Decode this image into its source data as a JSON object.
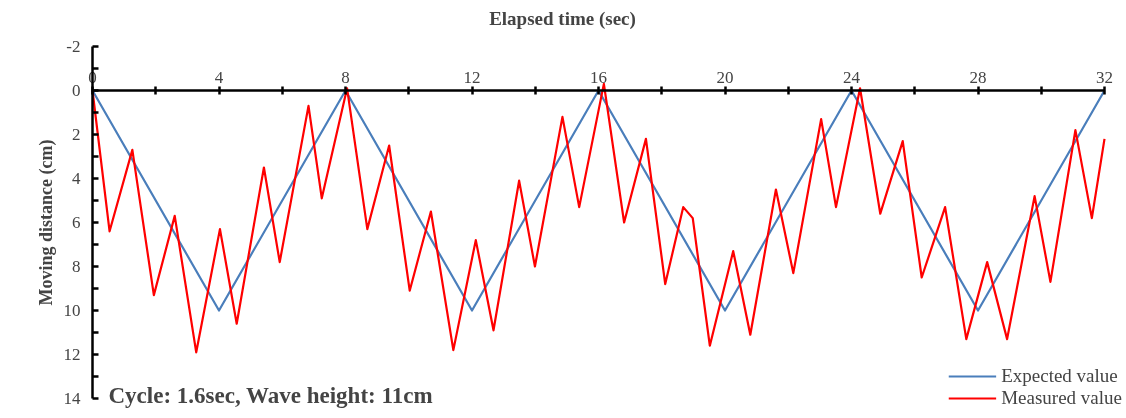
{
  "chart_data": {
    "type": "line",
    "xlabel": "Elapsed time (sec)",
    "ylabel": "Moving distance (cm)",
    "annotations": [
      "Cycle: 1.6sec, Wave height: 11cm"
    ],
    "xlim": [
      0,
      32
    ],
    "ylim": [
      14,
      -2
    ],
    "xticks": [
      0,
      {
        "value": 2,
        "label": null
      },
      4,
      {
        "value": 6,
        "label": null
      },
      8,
      {
        "value": 10,
        "label": null
      },
      12,
      {
        "value": 14,
        "label": null
      },
      16,
      {
        "value": 18,
        "label": null
      },
      20,
      {
        "value": 22,
        "label": null
      },
      24,
      {
        "value": 26,
        "label": null
      },
      28,
      {
        "value": 30,
        "label": null
      },
      32
    ],
    "yticks": [
      -2,
      {
        "value": -1,
        "label": null
      },
      0,
      {
        "value": 1,
        "label": null
      },
      2,
      {
        "value": 3,
        "label": null
      },
      4,
      {
        "value": 5,
        "label": null
      },
      6,
      {
        "value": 7,
        "label": null
      },
      8,
      {
        "value": 9,
        "label": null
      },
      10,
      {
        "value": 11,
        "label": null
      },
      12,
      {
        "value": 13,
        "label": null
      },
      14
    ],
    "grid": false,
    "legend": "bottom right",
    "marker": "none",
    "line_style": "solid",
    "series": [
      {
        "name": "Expected value",
        "color": "#4a7ebb",
        "x": [
          0,
          4,
          8,
          12,
          16,
          20,
          24,
          28,
          32
        ],
        "values": [
          0,
          10,
          0,
          10,
          0,
          10,
          0,
          10,
          0
        ]
      },
      {
        "name": "Measured value",
        "color": "#ff0000",
        "x": [
          0,
          0.54,
          1.26,
          1.94,
          2.6,
          3.28,
          4.03,
          4.56,
          5.42,
          5.92,
          6.83,
          7.25,
          8.05,
          8.69,
          9.38,
          10.03,
          10.7,
          11.41,
          12.12,
          12.68,
          13.49,
          13.99,
          14.86,
          15.39,
          16.17,
          16.81,
          17.5,
          18.11,
          18.68,
          18.98,
          19.52,
          20.26,
          20.8,
          21.61,
          22.16,
          23.04,
          23.51,
          24.27,
          24.91,
          25.62,
          26.22,
          26.96,
          27.63,
          28.29,
          28.92,
          29.79,
          30.29,
          31.08,
          31.6,
          32
        ],
        "values": [
          0,
          6.4,
          2.7,
          9.3,
          5.7,
          11.9,
          6.3,
          10.6,
          3.5,
          7.8,
          0.7,
          4.9,
          -0.1,
          6.3,
          2.5,
          9.1,
          5.5,
          11.8,
          6.8,
          10.9,
          4.1,
          8.0,
          1.2,
          5.3,
          -0.3,
          6.0,
          2.2,
          8.8,
          5.3,
          5.8,
          11.6,
          7.3,
          11.1,
          4.5,
          8.3,
          1.3,
          5.3,
          -0.1,
          5.6,
          2.3,
          8.5,
          5.3,
          11.3,
          7.8,
          11.3,
          4.8,
          8.7,
          1.8,
          5.8,
          2.2
        ]
      }
    ]
  }
}
